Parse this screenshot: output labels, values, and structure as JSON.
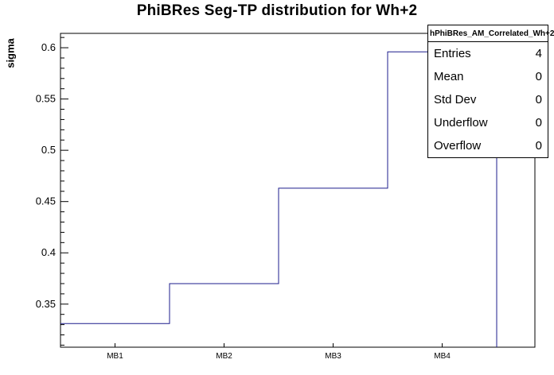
{
  "chart_data": {
    "type": "bar",
    "subtype": "step-histogram-outline",
    "title": "PhiBRes Seg-TP distribution for Wh+2",
    "xlabel": "",
    "ylabel": "sigma",
    "categories": [
      "MB1",
      "MB2",
      "MB3",
      "MB4"
    ],
    "values": [
      0.331,
      0.37,
      0.463,
      0.596
    ],
    "x_bin_edges": [
      0.5,
      1.5,
      2.5,
      3.5,
      4.5
    ],
    "xlim": [
      0.5,
      4.85
    ],
    "ylim": [
      0.308,
      0.614
    ],
    "y_major_ticks": [
      0.35,
      0.4,
      0.45,
      0.5,
      0.55,
      0.6
    ],
    "y_minor_step": 0.01,
    "grid": false,
    "legend_position": "none",
    "line_color": "#1c1c8c",
    "frame_color": "#000000",
    "background_color": "#ffffff"
  },
  "stats": {
    "header": "hPhiBRes_AM_Correlated_Wh+2",
    "rows": [
      {
        "label": "Entries",
        "value": "4"
      },
      {
        "label": "Mean",
        "value": "0"
      },
      {
        "label": "Std Dev",
        "value": "0"
      },
      {
        "label": "Underflow",
        "value": "0"
      },
      {
        "label": "Overflow",
        "value": "0"
      }
    ]
  }
}
